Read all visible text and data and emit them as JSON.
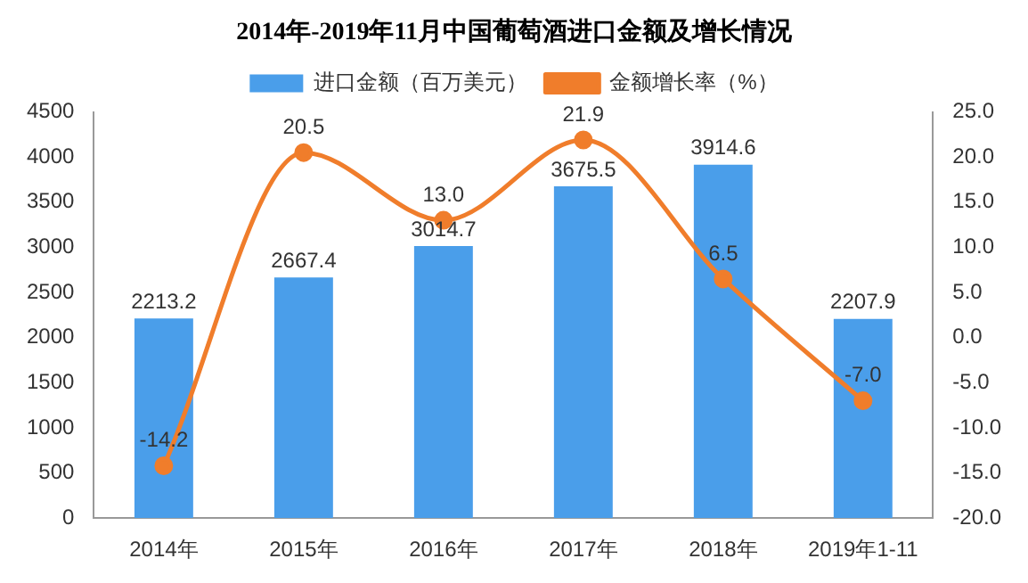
{
  "chart_data": {
    "type": "bar",
    "title": "2014年-2019年11月中国葡萄酒进口金额及增长情况",
    "categories": [
      "2014年",
      "2015年",
      "2016年",
      "2017年",
      "2018年",
      "2019年1-11"
    ],
    "series": [
      {
        "name": "进口金额（百万美元）",
        "color": "#4a9eea",
        "values": [
          2213.2,
          2667.4,
          3014.7,
          3675.5,
          3914.6,
          2207.9
        ],
        "value_labels": [
          "2213.2",
          "2667.4",
          "3014.7",
          "3675.5",
          "3914.6",
          "2207.9"
        ]
      },
      {
        "name": "金额增长率（%）",
        "type": "line",
        "axis": "y2",
        "color": "#f07d2b",
        "marker": "circle",
        "values": [
          -14.2,
          20.5,
          13.0,
          21.9,
          6.5,
          -7.0
        ],
        "value_labels": [
          "-14.2",
          "20.5",
          "13.0",
          "21.9",
          "6.5",
          "-7.0"
        ]
      }
    ],
    "ylim": [
      0,
      4500
    ],
    "yticks": [
      0,
      500,
      1000,
      1500,
      2000,
      2500,
      3000,
      3500,
      4000,
      4500
    ],
    "y2lim": [
      -20,
      25
    ],
    "y2ticks": [
      {
        "value": -20,
        "label": "-20.0"
      },
      {
        "value": -15,
        "label": "-15.0"
      },
      {
        "value": -10,
        "label": "-10.0"
      },
      {
        "value": -5,
        "label": "-5.0"
      },
      {
        "value": 0,
        "label": "0.0"
      },
      {
        "value": 5,
        "label": "5.0"
      },
      {
        "value": 10,
        "label": "10.0"
      },
      {
        "value": 15,
        "label": "15.0"
      },
      {
        "value": 20,
        "label": "20.0"
      },
      {
        "value": 25,
        "label": "25.0"
      }
    ],
    "grid": false,
    "legend": "top"
  }
}
